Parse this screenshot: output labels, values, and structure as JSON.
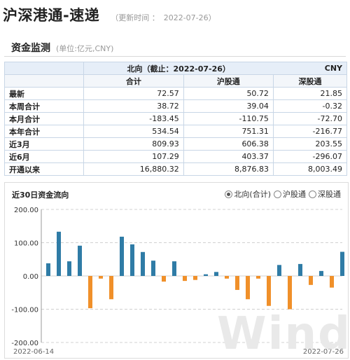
{
  "header": {
    "title": "沪深港通-速递",
    "update_label": "（更新时间 ：",
    "update_date": "2022-07-26",
    "update_close": "）"
  },
  "section": {
    "title": "资金监测",
    "unit": "(单位:亿元,CNY)"
  },
  "table": {
    "direction_title": "北向（截止：2022-07-26）",
    "currency": "CNY",
    "columns": [
      "合计",
      "沪股通",
      "深股通"
    ],
    "rows": [
      {
        "label": "最新",
        "total": "72.57",
        "sh": "50.72",
        "sz": "21.85"
      },
      {
        "label": "本周合计",
        "total": "38.72",
        "sh": "39.04",
        "sz": "-0.32"
      },
      {
        "label": "本月合计",
        "total": "-183.45",
        "sh": "-110.75",
        "sz": "-72.70"
      },
      {
        "label": "本年合计",
        "total": "534.54",
        "sh": "751.31",
        "sz": "-216.77"
      },
      {
        "label": "近3月",
        "total": "809.93",
        "sh": "606.38",
        "sz": "203.55"
      },
      {
        "label": "近6月",
        "total": "107.29",
        "sh": "403.37",
        "sz": "-296.07"
      },
      {
        "label": "开通以来",
        "total": "16,880.32",
        "sh": "8,876.83",
        "sz": "8,003.49"
      }
    ]
  },
  "chart": {
    "title": "近30日资金流向",
    "legend": [
      {
        "label": "北向(合计)",
        "selected": true
      },
      {
        "label": "沪股通",
        "selected": false
      },
      {
        "label": "深股通",
        "selected": false
      }
    ],
    "watermark": "Wind"
  },
  "chart_data": {
    "type": "bar",
    "title": "近30日资金流向",
    "ylim": [
      -200,
      200
    ],
    "yticks": [
      "200.00",
      "100.00",
      "0.00",
      "-100.00",
      "-200.00"
    ],
    "ytick_values": [
      200,
      100,
      0,
      -100,
      -200
    ],
    "x_labels": [
      "2022-06-14",
      "2022-07-26"
    ],
    "positive_color": "#2f7ca6",
    "negative_color": "#f0902a",
    "grid": true,
    "values": [
      38,
      133,
      44,
      91,
      -97,
      -8,
      -70,
      118,
      95,
      72,
      46,
      -17,
      44,
      -15,
      -12,
      5,
      12,
      -8,
      -42,
      -70,
      -8,
      -90,
      33,
      -100,
      36,
      -27,
      15,
      -35,
      72.57
    ]
  }
}
